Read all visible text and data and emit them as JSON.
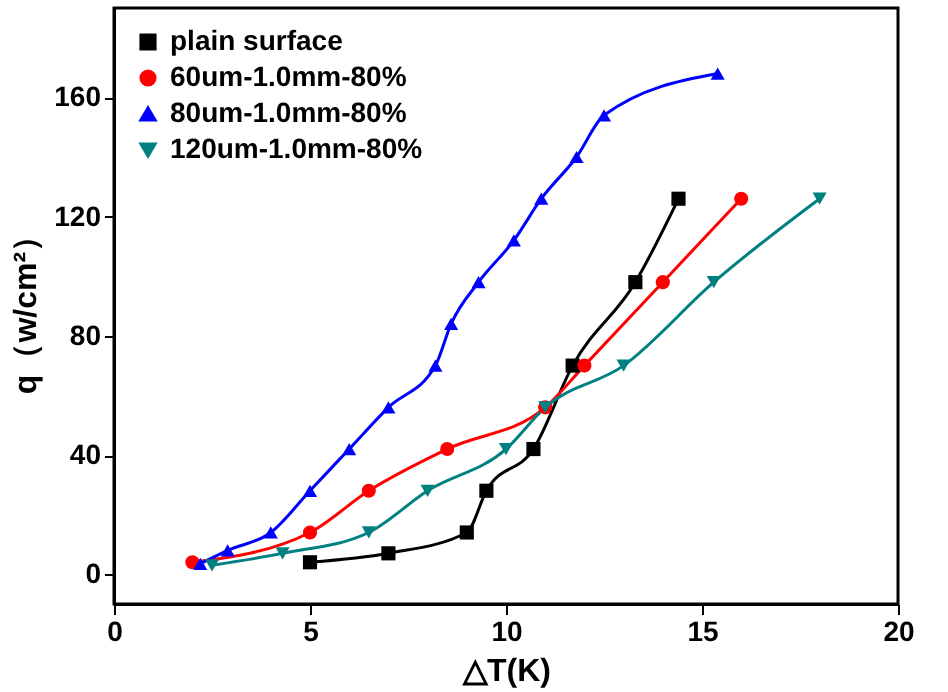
{
  "chart_data": {
    "type": "line",
    "xlabel": "△T(K)",
    "ylabel": "q（w/cm²）",
    "xlim": [
      0,
      20
    ],
    "xticks": [
      0,
      5,
      10,
      15,
      20
    ],
    "ylim": [
      -10,
      190
    ],
    "yticks": [
      0,
      40,
      80,
      120,
      160
    ],
    "grid": false,
    "legend": "top left",
    "line_style": "solid",
    "series": [
      {
        "name": "plain surface",
        "color": "#000000",
        "marker": "square",
        "x": [
          5,
          7,
          9,
          9.5,
          10.7,
          11.7,
          13.3,
          14.4
        ],
        "values": [
          4,
          7,
          14,
          28,
          42,
          70,
          98,
          126
        ]
      },
      {
        "name": "60um-1.0mm-80%",
        "color": "#ff0000",
        "marker": "circle",
        "x": [
          2,
          5,
          6.5,
          8.5,
          11,
          12,
          14,
          16
        ],
        "values": [
          4,
          14,
          28,
          42,
          56,
          70,
          98,
          126
        ]
      },
      {
        "name": "80um-1.0mm-80%",
        "color": "#0000ff",
        "marker": "triangle",
        "x": [
          2.2,
          2.9,
          4,
          5,
          6,
          7,
          8.2,
          8.6,
          9.3,
          10.2,
          10.9,
          11.8,
          12.5,
          15.4
        ],
        "values": [
          3.5,
          8,
          14,
          28,
          42,
          56,
          70,
          84,
          98,
          112,
          126,
          140,
          154,
          168
        ]
      },
      {
        "name": "120um-1.0mm-80%",
        "color": "#008080",
        "marker": "triangle-down",
        "x": [
          2.5,
          4.3,
          6.5,
          8,
          10,
          11,
          13,
          15.3,
          18
        ],
        "values": [
          3,
          7,
          14,
          28,
          42,
          56,
          70,
          98,
          126
        ]
      }
    ]
  }
}
